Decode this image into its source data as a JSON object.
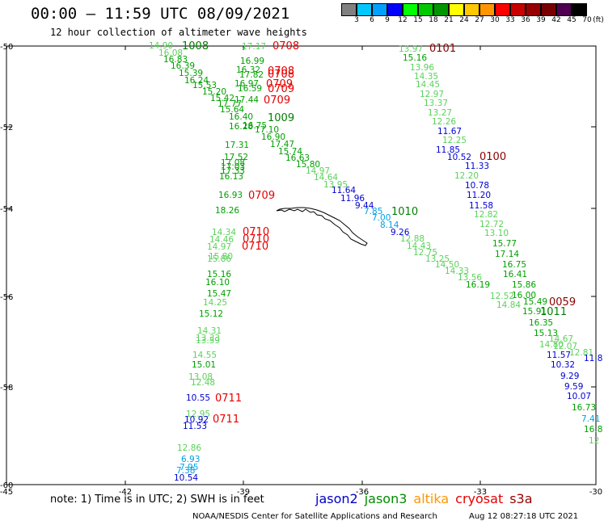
{
  "header": {
    "title": "00:00 – 11:59 UTC 08/09/2021",
    "subtitle": "12 hour collection of altimeter wave heights"
  },
  "colorbar": {
    "unit": "(ft)",
    "labels": [
      "3",
      "6",
      "9",
      "12",
      "15",
      "18",
      "21",
      "24",
      "27",
      "30",
      "33",
      "36",
      "39",
      "42",
      "45",
      "70"
    ],
    "colors": [
      "#808080",
      "#00c8ff",
      "#00a0ff",
      "#0000ff",
      "#00ff00",
      "#00c800",
      "#009600",
      "#ffff00",
      "#ffc800",
      "#ff9600",
      "#ff0000",
      "#c80000",
      "#960000",
      "#780000",
      "#500050",
      "#000000"
    ]
  },
  "axes": {
    "x_ticks": [
      "-45",
      "-42",
      "-39",
      "-36",
      "-33",
      "-30"
    ],
    "y_ticks": [
      "-50",
      "-52",
      "-54",
      "-56",
      "-58",
      "-60"
    ]
  },
  "footer": {
    "note": "note: 1) Time is in UTC; 2) SWH is in feet",
    "satellites": [
      {
        "name": "jason2",
        "color": "#0000c8"
      },
      {
        "name": "jason3",
        "color": "#008c00"
      },
      {
        "name": "altika",
        "color": "#ff9600"
      },
      {
        "name": "cryosat",
        "color": "#e60000"
      },
      {
        "name": "s3a",
        "color": "#960000"
      }
    ],
    "credit": "NOAA/NESDIS Center for Satellite Applications and Research",
    "timestamp": "Aug 12 08:27:18 UTC 2021"
  },
  "palette": {
    "light_green": "#5ad25a",
    "green": "#00a000",
    "dark_green": "#008000",
    "blue": "#0000d2",
    "cyan": "#00a0e6",
    "red": "#e60000",
    "maroon": "#8c0000"
  },
  "track_times": [
    {
      "text": "1008",
      "color": "dark_green"
    },
    {
      "text": "0708",
      "color": "red"
    },
    {
      "text": "0101",
      "color": "maroon"
    },
    {
      "text": "0708",
      "color": "red"
    },
    {
      "text": "0708",
      "color": "red"
    },
    {
      "text": "0709",
      "color": "red"
    },
    {
      "text": "0709",
      "color": "red"
    },
    {
      "text": "0709",
      "color": "red"
    },
    {
      "text": "1009",
      "color": "dark_green"
    },
    {
      "text": "0100",
      "color": "maroon"
    },
    {
      "text": "0709",
      "color": "red"
    },
    {
      "text": "1010",
      "color": "dark_green"
    },
    {
      "text": "0710",
      "color": "red"
    },
    {
      "text": "0710",
      "color": "red"
    },
    {
      "text": "0710",
      "color": "red"
    },
    {
      "text": "0059",
      "color": "maroon"
    },
    {
      "text": "1011",
      "color": "dark_green"
    },
    {
      "text": "0711",
      "color": "red"
    },
    {
      "text": "0711",
      "color": "red"
    }
  ],
  "wave_heights": [
    {
      "text": "14.90",
      "color": "light_green"
    },
    {
      "text": "16.08",
      "color": "light_green"
    },
    {
      "text": "16.83",
      "color": "green"
    },
    {
      "text": "16.39",
      "color": "green"
    },
    {
      "text": "15.39",
      "color": "green"
    },
    {
      "text": "16.24",
      "color": "green"
    },
    {
      "text": "15.53",
      "color": "green"
    },
    {
      "text": "15.20",
      "color": "green"
    },
    {
      "text": "15.42",
      "color": "green"
    },
    {
      "text": "17.77",
      "color": "green"
    },
    {
      "text": "15.64",
      "color": "green"
    },
    {
      "text": "16.40",
      "color": "green"
    },
    {
      "text": "16.28",
      "color": "green"
    },
    {
      "text": "16.75",
      "color": "green"
    },
    {
      "text": "17.10",
      "color": "green"
    },
    {
      "text": "16.90",
      "color": "green"
    },
    {
      "text": "17.47",
      "color": "green"
    },
    {
      "text": "15.74",
      "color": "green"
    },
    {
      "text": "16.63",
      "color": "green"
    },
    {
      "text": "15.80",
      "color": "green"
    },
    {
      "text": "14.97",
      "color": "light_green"
    },
    {
      "text": "14.64",
      "color": "light_green"
    },
    {
      "text": "13.95",
      "color": "light_green"
    },
    {
      "text": "17.17",
      "color": "light_green"
    },
    {
      "text": "16.99",
      "color": "green"
    },
    {
      "text": "16.32",
      "color": "green"
    },
    {
      "text": "17.82",
      "color": "green"
    },
    {
      "text": "16.97",
      "color": "green"
    },
    {
      "text": "16.59",
      "color": "green"
    },
    {
      "text": "17.44",
      "color": "green"
    },
    {
      "text": "17.31",
      "color": "green"
    },
    {
      "text": "17.52",
      "color": "green"
    },
    {
      "text": "17.08",
      "color": "green"
    },
    {
      "text": "17.03",
      "color": "green"
    },
    {
      "text": "17.33",
      "color": "green"
    },
    {
      "text": "16.13",
      "color": "green"
    },
    {
      "text": "16.93",
      "color": "green"
    },
    {
      "text": "18.26",
      "color": "green"
    },
    {
      "text": "11.64",
      "color": "blue"
    },
    {
      "text": "11.96",
      "color": "blue"
    },
    {
      "text": "9.44",
      "color": "blue"
    },
    {
      "text": "7.85",
      "color": "cyan"
    },
    {
      "text": "7.00",
      "color": "cyan"
    },
    {
      "text": "8.14",
      "color": "cyan"
    },
    {
      "text": "9.26",
      "color": "blue"
    },
    {
      "text": "12.88",
      "color": "light_green"
    },
    {
      "text": "14.43",
      "color": "light_green"
    },
    {
      "text": "12.75",
      "color": "light_green"
    },
    {
      "text": "13.25",
      "color": "light_green"
    },
    {
      "text": "14.50",
      "color": "light_green"
    },
    {
      "text": "14.33",
      "color": "light_green"
    },
    {
      "text": "13.56",
      "color": "light_green"
    },
    {
      "text": "16.19",
      "color": "green"
    },
    {
      "text": "12.52",
      "color": "light_green"
    },
    {
      "text": "14.84",
      "color": "light_green"
    },
    {
      "text": "15.91",
      "color": "green"
    },
    {
      "text": "16.35",
      "color": "green"
    },
    {
      "text": "15.13",
      "color": "green"
    },
    {
      "text": "14.80",
      "color": "light_green"
    },
    {
      "text": "15.49",
      "color": "green"
    },
    {
      "text": "16.00",
      "color": "green"
    },
    {
      "text": "13.97",
      "color": "light_green"
    },
    {
      "text": "15.16",
      "color": "green"
    },
    {
      "text": "13.96",
      "color": "light_green"
    },
    {
      "text": "14.35",
      "color": "light_green"
    },
    {
      "text": "14.45",
      "color": "light_green"
    },
    {
      "text": "12.97",
      "color": "light_green"
    },
    {
      "text": "13.37",
      "color": "light_green"
    },
    {
      "text": "13.27",
      "color": "light_green"
    },
    {
      "text": "12.26",
      "color": "light_green"
    },
    {
      "text": "11.67",
      "color": "blue"
    },
    {
      "text": "12.25",
      "color": "light_green"
    },
    {
      "text": "11.85",
      "color": "blue"
    },
    {
      "text": "10.52",
      "color": "blue"
    },
    {
      "text": "11.33",
      "color": "blue"
    },
    {
      "text": "12.20",
      "color": "light_green"
    },
    {
      "text": "10.78",
      "color": "blue"
    },
    {
      "text": "11.20",
      "color": "blue"
    },
    {
      "text": "11.58",
      "color": "blue"
    },
    {
      "text": "12.82",
      "color": "light_green"
    },
    {
      "text": "12.72",
      "color": "light_green"
    },
    {
      "text": "13.10",
      "color": "light_green"
    },
    {
      "text": "15.77",
      "color": "green"
    },
    {
      "text": "17.14",
      "color": "green"
    },
    {
      "text": "16.75",
      "color": "green"
    },
    {
      "text": "16.41",
      "color": "green"
    },
    {
      "text": "15.86",
      "color": "green"
    },
    {
      "text": "14.34",
      "color": "light_green"
    },
    {
      "text": "14.46",
      "color": "light_green"
    },
    {
      "text": "14.97",
      "color": "light_green"
    },
    {
      "text": "15.80",
      "color": "light_green"
    },
    {
      "text": "15.86",
      "color": "light_green"
    },
    {
      "text": "15.16",
      "color": "green"
    },
    {
      "text": "16.10",
      "color": "green"
    },
    {
      "text": "15.47",
      "color": "green"
    },
    {
      "text": "14.25",
      "color": "light_green"
    },
    {
      "text": "15.12",
      "color": "green"
    },
    {
      "text": "14.31",
      "color": "light_green"
    },
    {
      "text": "13.33",
      "color": "light_green"
    },
    {
      "text": "13.59",
      "color": "light_green"
    },
    {
      "text": "14.55",
      "color": "light_green"
    },
    {
      "text": "15.01",
      "color": "green"
    },
    {
      "text": "13.08",
      "color": "light_green"
    },
    {
      "text": "12.48",
      "color": "light_green"
    },
    {
      "text": "10.55",
      "color": "blue"
    },
    {
      "text": "12.95",
      "color": "light_green"
    },
    {
      "text": "10.92",
      "color": "blue"
    },
    {
      "text": "11.53",
      "color": "blue"
    },
    {
      "text": "12.86",
      "color": "light_green"
    },
    {
      "text": "6.93",
      "color": "cyan"
    },
    {
      "text": "7.95",
      "color": "cyan"
    },
    {
      "text": "7.38",
      "color": "cyan"
    },
    {
      "text": "10.54",
      "color": "blue"
    },
    {
      "text": "14.67",
      "color": "light_green"
    },
    {
      "text": "12.07",
      "color": "light_green"
    },
    {
      "text": "12.81",
      "color": "light_green"
    },
    {
      "text": "11.57",
      "color": "blue"
    },
    {
      "text": "10.32",
      "color": "blue"
    },
    {
      "text": "9.29",
      "color": "blue"
    },
    {
      "text": "9.59",
      "color": "blue"
    },
    {
      "text": "10.07",
      "color": "blue"
    },
    {
      "text": "16.73",
      "color": "green"
    },
    {
      "text": "7.41",
      "color": "cyan"
    },
    {
      "text": "16.8",
      "color": "green"
    },
    {
      "text": "12",
      "color": "light_green"
    },
    {
      "text": "11.8",
      "color": "blue"
    }
  ]
}
